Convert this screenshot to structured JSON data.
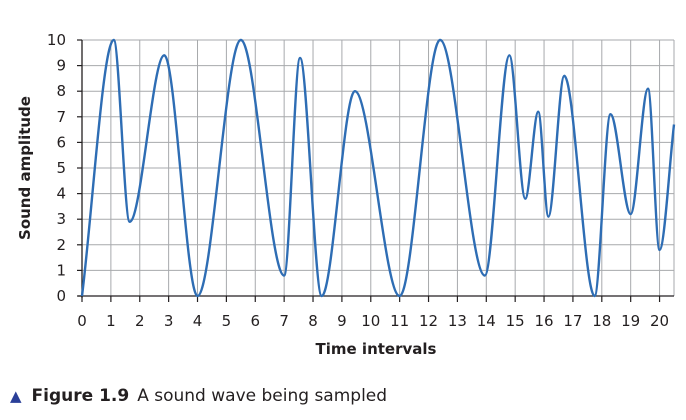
{
  "chart_data": {
    "type": "line",
    "xlabel": "Time intervals",
    "ylabel": "Sound amplitude",
    "xlim": [
      0,
      20.5
    ],
    "ylim": [
      0,
      10
    ],
    "x_ticks": [
      "0",
      "1",
      "2",
      "3",
      "4",
      "5",
      "6",
      "7",
      "8",
      "9",
      "10",
      "11",
      "12",
      "13",
      "14",
      "15",
      "16",
      "17",
      "18",
      "19",
      "20"
    ],
    "y_ticks": [
      "0",
      "1",
      "2",
      "3",
      "4",
      "5",
      "6",
      "7",
      "8",
      "9",
      "10"
    ],
    "grid": true,
    "line_color": "#2e6db4",
    "series": [
      {
        "x": [
          0,
          1.1,
          1.65,
          2.85,
          4.0,
          5.5,
          7.0,
          7.55,
          8.3,
          9.45,
          11.0,
          12.4,
          13.95,
          14.8,
          15.35,
          15.8,
          16.15,
          16.7,
          17.75,
          18.3,
          19.0,
          19.6,
          20.0,
          20.5
        ],
        "y": [
          0,
          10,
          2.9,
          9.4,
          0,
          10,
          0.8,
          9.3,
          0,
          8.0,
          0,
          10,
          0.8,
          9.4,
          3.8,
          7.2,
          3.1,
          8.6,
          0,
          7.1,
          3.2,
          8.1,
          1.8,
          6.7
        ]
      }
    ]
  },
  "caption": {
    "marker": "▲",
    "figure_label": "Figure 1.9",
    "text": "A sound wave being sampled"
  }
}
